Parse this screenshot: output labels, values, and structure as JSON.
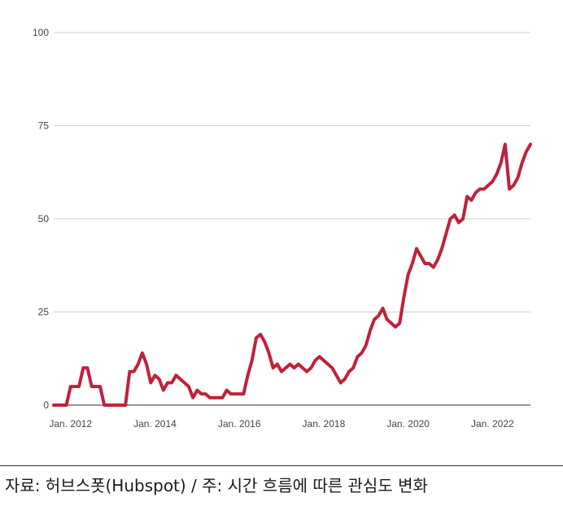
{
  "chart_data": {
    "type": "line",
    "title": "",
    "xlabel": "",
    "ylabel": "",
    "ylim": [
      0,
      100
    ],
    "yticks": [
      0,
      25,
      50,
      75,
      100
    ],
    "xticks": [
      "Jan. 2012",
      "Jan. 2014",
      "Jan. 2016",
      "Jan. 2018",
      "Jan. 2020",
      "Jan. 2022"
    ],
    "xtick_years": [
      2012,
      2014,
      2016,
      2018,
      2020,
      2022
    ],
    "xlim": [
      2011.6,
      2022.9
    ],
    "grid": true,
    "line_color": "#c0213a",
    "series": [
      {
        "name": "",
        "x": [
          2011.6,
          2011.7,
          2011.8,
          2011.9,
          2012.0,
          2012.1,
          2012.2,
          2012.3,
          2012.4,
          2012.5,
          2012.6,
          2012.7,
          2012.8,
          2012.9,
          2013.0,
          2013.1,
          2013.2,
          2013.3,
          2013.4,
          2013.5,
          2013.6,
          2013.7,
          2013.8,
          2013.9,
          2014.0,
          2014.1,
          2014.2,
          2014.3,
          2014.4,
          2014.5,
          2014.6,
          2014.7,
          2014.8,
          2014.9,
          2015.0,
          2015.1,
          2015.2,
          2015.3,
          2015.4,
          2015.5,
          2015.6,
          2015.7,
          2015.8,
          2015.9,
          2016.0,
          2016.1,
          2016.2,
          2016.3,
          2016.4,
          2016.5,
          2016.6,
          2016.7,
          2016.8,
          2016.9,
          2017.0,
          2017.1,
          2017.2,
          2017.3,
          2017.4,
          2017.5,
          2017.6,
          2017.7,
          2017.8,
          2017.9,
          2018.0,
          2018.1,
          2018.2,
          2018.3,
          2018.4,
          2018.5,
          2018.6,
          2018.7,
          2018.8,
          2018.9,
          2019.0,
          2019.1,
          2019.2,
          2019.3,
          2019.4,
          2019.5,
          2019.6,
          2019.7,
          2019.8,
          2019.9,
          2020.0,
          2020.1,
          2020.2,
          2020.3,
          2020.4,
          2020.5,
          2020.6,
          2020.7,
          2020.8,
          2020.9,
          2021.0,
          2021.1,
          2021.2,
          2021.3,
          2021.4,
          2021.5,
          2021.6,
          2021.7,
          2021.8,
          2021.9,
          2022.0,
          2022.1,
          2022.2,
          2022.3,
          2022.4,
          2022.5,
          2022.6,
          2022.7,
          2022.8,
          2022.9
        ],
        "values": [
          0,
          0,
          0,
          0,
          5,
          5,
          5,
          10,
          10,
          5,
          5,
          5,
          0,
          0,
          0,
          0,
          0,
          0,
          9,
          9,
          11,
          14,
          11,
          6,
          8,
          7,
          4,
          6,
          6,
          8,
          7,
          6,
          5,
          2,
          4,
          3,
          3,
          2,
          2,
          2,
          2,
          4,
          3,
          3,
          3,
          3,
          8,
          12,
          18,
          19,
          17,
          14,
          10,
          11,
          9,
          10,
          11,
          10,
          11,
          10,
          9,
          10,
          12,
          13,
          12,
          11,
          10,
          8,
          6,
          7,
          9,
          10,
          13,
          14,
          16,
          20,
          23,
          24,
          26,
          23,
          22,
          21,
          22,
          29,
          35,
          38,
          42,
          40,
          38,
          38,
          37,
          39,
          42,
          46,
          50,
          51,
          49,
          50,
          56,
          55,
          57,
          58,
          58,
          59,
          60,
          62,
          65,
          70,
          58,
          59,
          61,
          65,
          68,
          70
        ]
      }
    ]
  },
  "footer": {
    "source_text": "자료: 허브스폿(Hubspot) / 주: 시간 흐름에 따른 관심도 변화"
  }
}
